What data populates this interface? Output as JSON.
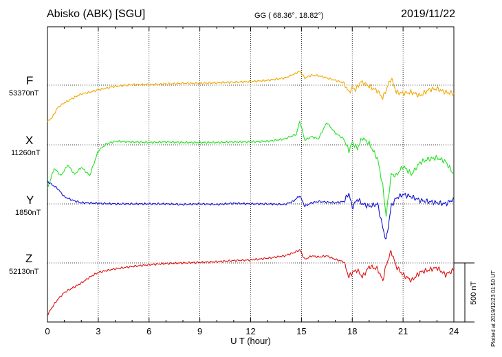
{
  "header": {
    "station": "Abisko (ABK)  [SGU]",
    "coords": "GG ( 68.36°,  18.82°)",
    "date": "2019/11/22"
  },
  "footer": {
    "plotted": "Plotted at 2019/12/23 01:50 UT",
    "scale_label": "500 nT"
  },
  "chart_data": {
    "type": "line",
    "xlabel": "U T (hour)",
    "xlim": [
      0,
      24
    ],
    "xticks": [
      "0",
      "3",
      "6",
      "9",
      "12",
      "15",
      "18",
      "21",
      "24"
    ],
    "grid": true,
    "scale_bar_nT": 500,
    "series": [
      {
        "name": "F",
        "baseline_label": "53370nT",
        "baseline_nT": 53370,
        "color": "#f0a800",
        "points": [
          [
            0,
            -310
          ],
          [
            0.3,
            -270
          ],
          [
            0.6,
            -190
          ],
          [
            1,
            -150
          ],
          [
            1.5,
            -110
          ],
          [
            2,
            -75
          ],
          [
            2.5,
            -60
          ],
          [
            3,
            -40
          ],
          [
            4,
            -10
          ],
          [
            5,
            5
          ],
          [
            6,
            5
          ],
          [
            7,
            10
          ],
          [
            8,
            15
          ],
          [
            9,
            15
          ],
          [
            10,
            20
          ],
          [
            11,
            25
          ],
          [
            12,
            30
          ],
          [
            13,
            40
          ],
          [
            14,
            60
          ],
          [
            14.6,
            95
          ],
          [
            14.9,
            120
          ],
          [
            15.2,
            60
          ],
          [
            15.6,
            85
          ],
          [
            16,
            80
          ],
          [
            16.5,
            60
          ],
          [
            17,
            40
          ],
          [
            17.5,
            20
          ],
          [
            17.8,
            -60
          ],
          [
            18,
            -20
          ],
          [
            18.2,
            -40
          ],
          [
            18.5,
            30
          ],
          [
            19,
            -10
          ],
          [
            19.5,
            -50
          ],
          [
            19.8,
            -110
          ],
          [
            20,
            -40
          ],
          [
            20.3,
            60
          ],
          [
            20.6,
            -60
          ],
          [
            21,
            -70
          ],
          [
            21.5,
            -60
          ],
          [
            22,
            -90
          ],
          [
            22.5,
            -40
          ],
          [
            23,
            -30
          ],
          [
            23.5,
            -60
          ],
          [
            24,
            -70
          ]
        ]
      },
      {
        "name": "X",
        "baseline_label": "11260nT",
        "baseline_nT": 11260,
        "color": "#22e022",
        "points": [
          [
            0,
            -370
          ],
          [
            0.4,
            -200
          ],
          [
            0.8,
            -260
          ],
          [
            1.2,
            -170
          ],
          [
            1.6,
            -250
          ],
          [
            2,
            -190
          ],
          [
            2.5,
            -260
          ],
          [
            3,
            -50
          ],
          [
            3.5,
            10
          ],
          [
            4,
            30
          ],
          [
            5,
            25
          ],
          [
            6,
            20
          ],
          [
            7,
            25
          ],
          [
            8,
            20
          ],
          [
            9,
            20
          ],
          [
            10,
            20
          ],
          [
            11,
            25
          ],
          [
            12,
            25
          ],
          [
            13,
            30
          ],
          [
            14,
            50
          ],
          [
            14.7,
            90
          ],
          [
            14.9,
            200
          ],
          [
            15.2,
            40
          ],
          [
            15.6,
            70
          ],
          [
            16,
            50
          ],
          [
            16.5,
            190
          ],
          [
            17,
            100
          ],
          [
            17.5,
            50
          ],
          [
            17.8,
            -50
          ],
          [
            18,
            20
          ],
          [
            18.3,
            -30
          ],
          [
            18.6,
            60
          ],
          [
            19,
            10
          ],
          [
            19.5,
            -120
          ],
          [
            19.8,
            -350
          ],
          [
            20,
            -600
          ],
          [
            20.3,
            -250
          ],
          [
            20.6,
            -260
          ],
          [
            21,
            -180
          ],
          [
            21.5,
            -250
          ],
          [
            22,
            -150
          ],
          [
            22.5,
            -120
          ],
          [
            23,
            -110
          ],
          [
            23.5,
            -140
          ],
          [
            24,
            -250
          ]
        ]
      },
      {
        "name": "Y",
        "baseline_label": "1850nT",
        "baseline_nT": 1850,
        "color": "#1010d0",
        "points": [
          [
            0,
            190
          ],
          [
            0.3,
            160
          ],
          [
            0.6,
            130
          ],
          [
            1,
            60
          ],
          [
            1.5,
            30
          ],
          [
            2,
            10
          ],
          [
            3,
            5
          ],
          [
            4,
            0
          ],
          [
            5,
            0
          ],
          [
            6,
            0
          ],
          [
            7,
            0
          ],
          [
            8,
            -5
          ],
          [
            9,
            0
          ],
          [
            10,
            -5
          ],
          [
            11,
            5
          ],
          [
            12,
            0
          ],
          [
            13,
            0
          ],
          [
            14,
            -5
          ],
          [
            14.5,
            20
          ],
          [
            14.9,
            70
          ],
          [
            15.2,
            -20
          ],
          [
            15.6,
            10
          ],
          [
            16,
            20
          ],
          [
            16.5,
            15
          ],
          [
            17,
            10
          ],
          [
            17.5,
            20
          ],
          [
            17.8,
            90
          ],
          [
            18,
            -30
          ],
          [
            18.3,
            40
          ],
          [
            18.6,
            0
          ],
          [
            19,
            -20
          ],
          [
            19.5,
            0
          ],
          [
            19.8,
            -200
          ],
          [
            20,
            -310
          ],
          [
            20.3,
            -20
          ],
          [
            20.6,
            50
          ],
          [
            21,
            80
          ],
          [
            21.5,
            60
          ],
          [
            22,
            30
          ],
          [
            22.5,
            20
          ],
          [
            23,
            10
          ],
          [
            23.5,
            0
          ],
          [
            24,
            40
          ]
        ]
      },
      {
        "name": "Z",
        "baseline_label": "52130nT",
        "baseline_nT": 52130,
        "color": "#e01010",
        "points": [
          [
            0,
            -440
          ],
          [
            0.3,
            -370
          ],
          [
            0.6,
            -310
          ],
          [
            1,
            -250
          ],
          [
            1.5,
            -210
          ],
          [
            2,
            -170
          ],
          [
            2.5,
            -120
          ],
          [
            3,
            -80
          ],
          [
            4,
            -50
          ],
          [
            5,
            -30
          ],
          [
            6,
            -15
          ],
          [
            7,
            -5
          ],
          [
            8,
            0
          ],
          [
            9,
            5
          ],
          [
            10,
            10
          ],
          [
            11,
            20
          ],
          [
            12,
            25
          ],
          [
            13,
            40
          ],
          [
            14,
            60
          ],
          [
            14.6,
            90
          ],
          [
            14.9,
            110
          ],
          [
            15.2,
            30
          ],
          [
            15.6,
            60
          ],
          [
            16,
            50
          ],
          [
            16.5,
            60
          ],
          [
            17,
            30
          ],
          [
            17.5,
            10
          ],
          [
            17.8,
            -120
          ],
          [
            18,
            -80
          ],
          [
            18.3,
            -60
          ],
          [
            18.6,
            -120
          ],
          [
            19,
            -30
          ],
          [
            19.5,
            -50
          ],
          [
            19.8,
            -150
          ],
          [
            20,
            -20
          ],
          [
            20.3,
            100
          ],
          [
            20.6,
            -30
          ],
          [
            21,
            -100
          ],
          [
            21.5,
            -150
          ],
          [
            22,
            -80
          ],
          [
            22.5,
            -60
          ],
          [
            23,
            -40
          ],
          [
            23.5,
            -100
          ],
          [
            24,
            -60
          ]
        ]
      }
    ]
  }
}
